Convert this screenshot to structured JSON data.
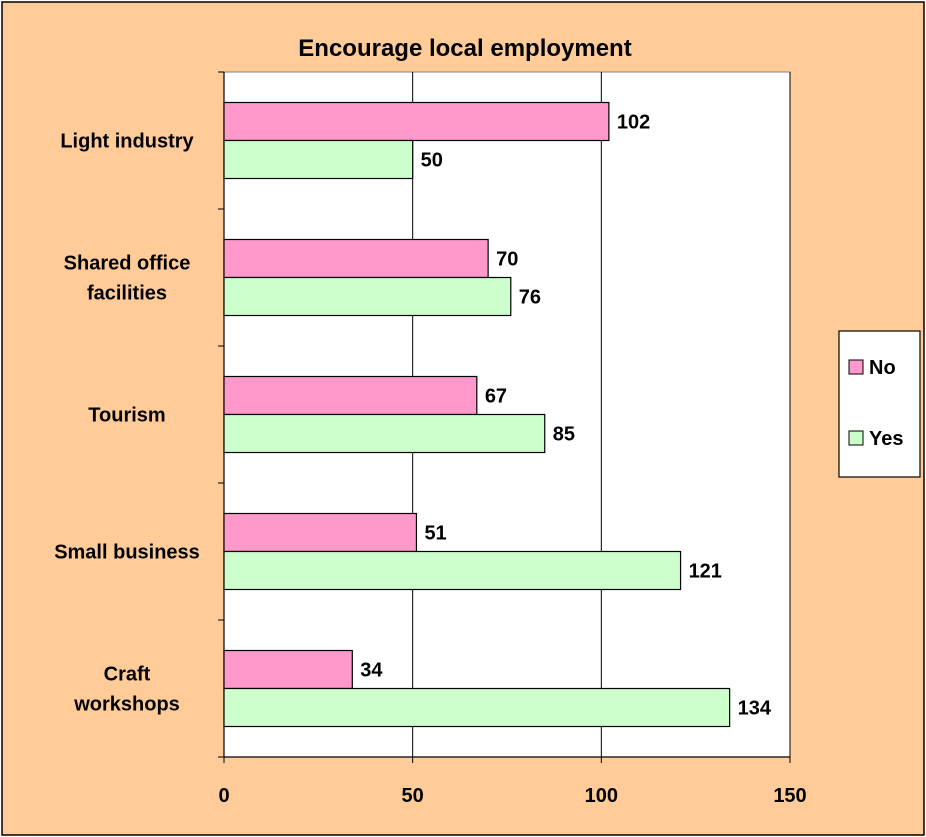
{
  "chart_data": {
    "type": "bar",
    "orientation": "horizontal",
    "title": "Encourage local employment",
    "xlabel": "",
    "ylabel": "",
    "categories": [
      "Light industry",
      "Shared office facilities",
      "Tourism",
      "Small business",
      "Craft workshops"
    ],
    "category_lines": [
      [
        "Light industry"
      ],
      [
        "Shared office",
        "facilities"
      ],
      [
        "Tourism"
      ],
      [
        "Small business"
      ],
      [
        "Craft",
        "workshops"
      ]
    ],
    "series": [
      {
        "name": "No",
        "values": [
          102,
          70,
          67,
          51,
          34
        ],
        "color": "#FF99CC"
      },
      {
        "name": "Yes",
        "values": [
          50,
          76,
          85,
          121,
          134
        ],
        "color": "#CCFFCC"
      }
    ],
    "xlim": [
      0,
      150
    ],
    "x_ticks": [
      0,
      50,
      100,
      150
    ],
    "x_tick_labels": [
      "0",
      "50",
      "100",
      "150"
    ],
    "grid": "vertical major",
    "data_labels": true,
    "legend_position": "right",
    "colors": {
      "background": "#FFCC99",
      "plot_area": "#FFFFFF",
      "gridline": "#000000",
      "bar_outline": "#000000"
    }
  }
}
